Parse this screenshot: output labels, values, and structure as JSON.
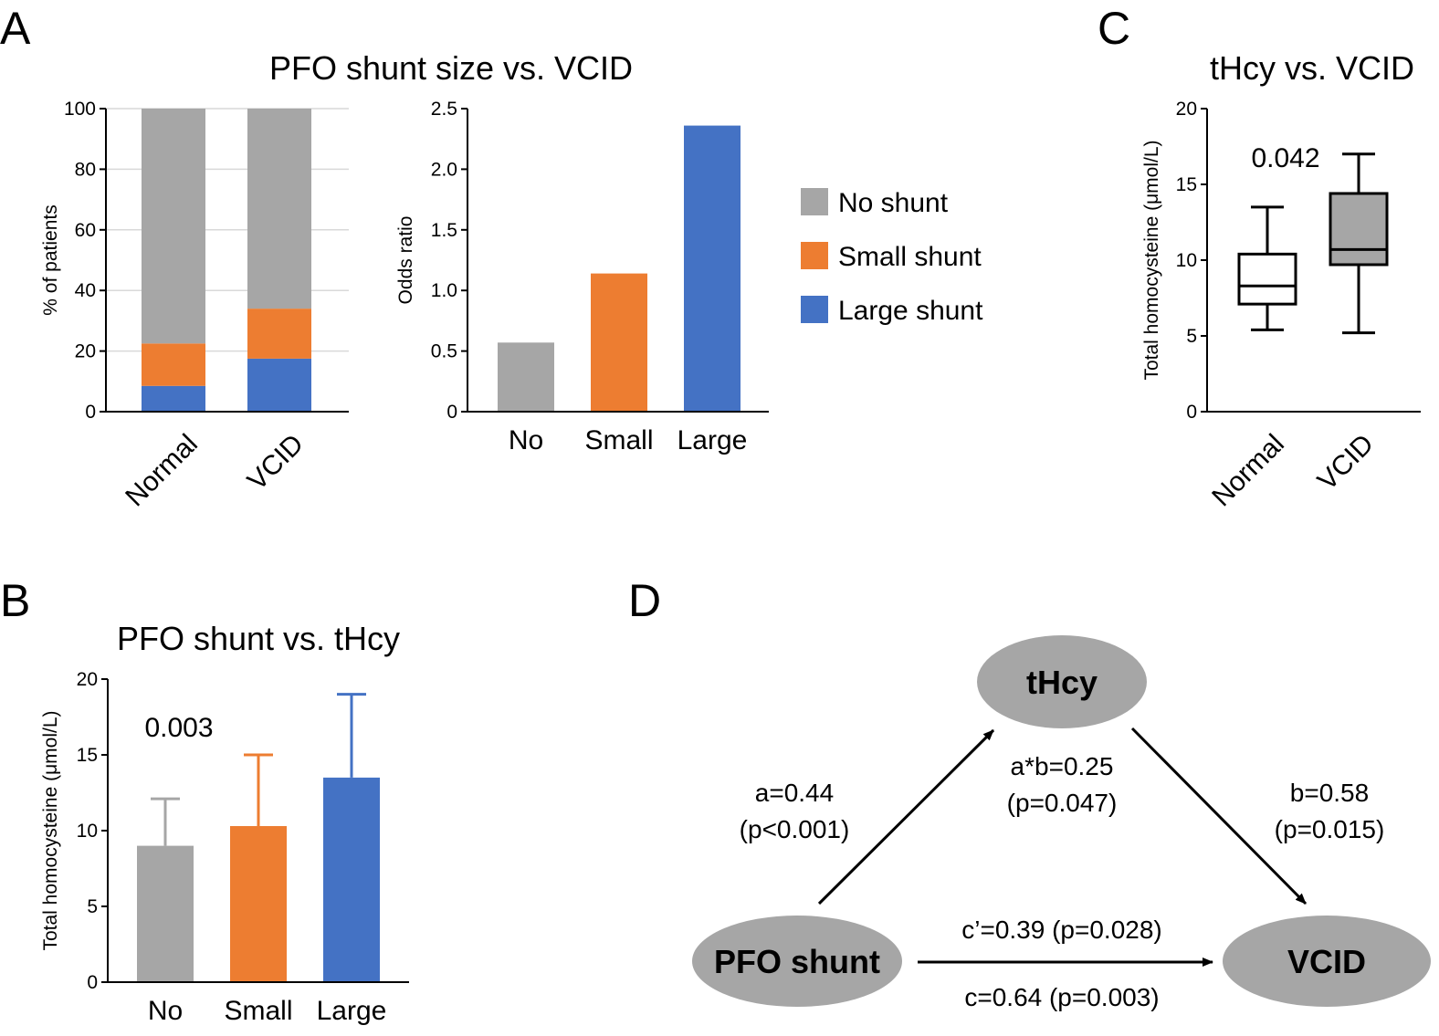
{
  "colors": {
    "no": "#a6a6a6",
    "small": "#ed7d31",
    "large": "#4472c4",
    "grid": "#d9d9d9",
    "ellipse": "#a6a6a6"
  },
  "panels": {
    "A": "A",
    "B": "B",
    "C": "C",
    "D": "D"
  },
  "legend": [
    {
      "label": "No shunt",
      "color": "#a6a6a6"
    },
    {
      "label": "Small shunt",
      "color": "#ed7d31"
    },
    {
      "label": "Large shunt",
      "color": "#4472c4"
    }
  ],
  "chart_data": [
    {
      "id": "A1",
      "type": "bar",
      "stacked": true,
      "title": "PFO shunt size vs. VCID",
      "ylabel": "% of patients",
      "ylim": [
        0,
        100
      ],
      "yticks": [
        0,
        20,
        40,
        60,
        80,
        100
      ],
      "grid": true,
      "categories": [
        "Normal",
        "VCID"
      ],
      "series": [
        {
          "name": "Large shunt",
          "values": [
            8.5,
            17.5
          ]
        },
        {
          "name": "Small shunt",
          "values": [
            14,
            16.5
          ]
        },
        {
          "name": "No shunt",
          "values": [
            77.5,
            66
          ]
        }
      ]
    },
    {
      "id": "A2",
      "type": "bar",
      "ylabel": "Odds ratio",
      "ylim": [
        0,
        2.5
      ],
      "yticks": [
        "0",
        "0.5",
        "1.0",
        "1.5",
        "2.0",
        "2.5"
      ],
      "yticks_values": [
        0,
        0.5,
        1.0,
        1.5,
        2.0,
        2.5
      ],
      "categories": [
        "No",
        "Small",
        "Large"
      ],
      "values": [
        0.57,
        1.14,
        2.36
      ]
    },
    {
      "id": "B",
      "type": "bar",
      "title": "PFO shunt vs. tHcy",
      "ylabel": "Total homocysteine (μmol/L)",
      "ylim": [
        0,
        20
      ],
      "yticks": [
        0,
        5,
        10,
        15,
        20
      ],
      "categories": [
        "No",
        "Small",
        "Large"
      ],
      "values": [
        9.0,
        10.3,
        13.5
      ],
      "error_upper": [
        12.1,
        15.0,
        19.0
      ],
      "annotation": "0.003"
    },
    {
      "id": "C",
      "type": "box",
      "title": "tHcy vs. VCID",
      "ylabel": "Total homocysteine (μmol/L)",
      "ylim": [
        0,
        20
      ],
      "yticks": [
        0,
        5,
        10,
        15,
        20
      ],
      "categories": [
        "Normal",
        "VCID"
      ],
      "boxes": [
        {
          "min": 5.4,
          "q1": 7.1,
          "median": 8.3,
          "q3": 10.4,
          "max": 13.5
        },
        {
          "min": 5.2,
          "q1": 9.7,
          "median": 10.7,
          "q3": 14.4,
          "max": 17.0
        }
      ],
      "annotation": "0.042"
    }
  ],
  "diagram": {
    "nodes": {
      "thcy": "tHcy",
      "pfo": "PFO shunt",
      "vcid": "VCID"
    },
    "labels": {
      "a": "a=0.44",
      "a_p": "(p<0.001)",
      "ab": "a*b=0.25",
      "ab_p": "(p=0.047)",
      "b": "b=0.58",
      "b_p": "(p=0.015)",
      "cprime": "c’=0.39 (p=0.028)",
      "c": "c=0.64 (p=0.003)"
    }
  }
}
